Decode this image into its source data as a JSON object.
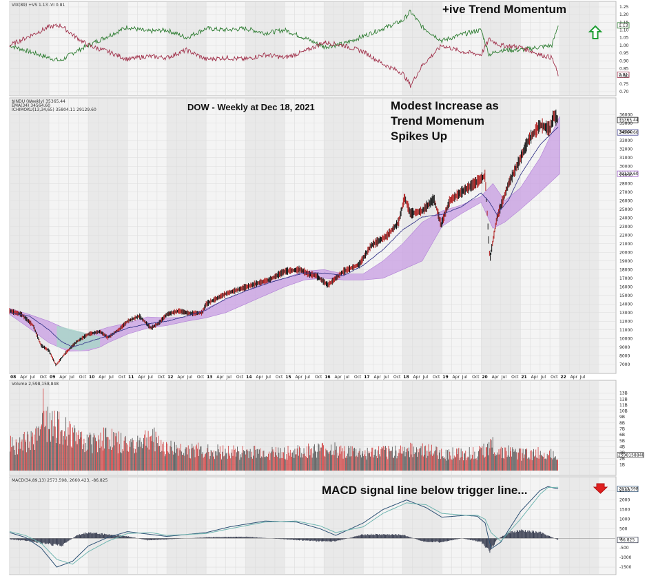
{
  "chart_data": [
    {
      "type": "line",
      "panel": "vix-ratio",
      "legend_text": "VIX(89) +VS 1.13 -VI 0.81",
      "annotation": "+ive Trend Momentum",
      "y_ticks": [
        "1.25",
        "1.20",
        "1.15",
        "1.10",
        "1.05",
        "1.00",
        "0.95",
        "0.90",
        "0.85",
        "0.80",
        "0.75",
        "0.70"
      ],
      "ylim": [
        0.7,
        1.25
      ],
      "last_labels": {
        "vi_plus": "1.13",
        "vi_minus": "0.81"
      },
      "series": [
        {
          "name": "+VS",
          "color": "#2e7d32",
          "x": [
            2008,
            2008.5,
            2009,
            2009.3,
            2009.6,
            2010,
            2010.5,
            2011,
            2011.5,
            2012,
            2012.5,
            2013,
            2013.5,
            2014,
            2014.5,
            2015,
            2015.5,
            2016,
            2016.5,
            2017,
            2017.5,
            2018,
            2018.2,
            2018.5,
            2019,
            2019.5,
            2020,
            2020.2,
            2020.5,
            2021,
            2021.5,
            2021.8,
            2021.96
          ],
          "y": [
            1.0,
            0.96,
            0.92,
            0.9,
            0.95,
            1.0,
            1.06,
            1.12,
            1.09,
            1.1,
            1.05,
            1.11,
            1.1,
            1.11,
            1.08,
            1.1,
            1.05,
            0.99,
            1.01,
            1.06,
            1.11,
            1.16,
            1.22,
            1.12,
            1.03,
            1.07,
            1.1,
            0.94,
            0.97,
            0.97,
            0.99,
            1.0,
            1.13
          ]
        },
        {
          "name": "-VI",
          "color": "#a0304a",
          "x": [
            2008,
            2008.5,
            2009,
            2009.3,
            2009.6,
            2010,
            2010.5,
            2011,
            2011.5,
            2012,
            2012.5,
            2013,
            2013.5,
            2014,
            2014.5,
            2015,
            2015.5,
            2016,
            2016.5,
            2017,
            2017.5,
            2018,
            2018.2,
            2018.5,
            2019,
            2019.5,
            2020,
            2020.2,
            2020.5,
            2021,
            2021.5,
            2021.8,
            2021.96
          ],
          "y": [
            1.0,
            1.06,
            1.12,
            1.13,
            1.07,
            1.0,
            0.96,
            0.91,
            0.93,
            0.92,
            0.97,
            0.91,
            0.92,
            0.91,
            0.94,
            0.92,
            0.96,
            1.02,
            1.0,
            0.96,
            0.88,
            0.82,
            0.74,
            0.87,
            1.0,
            0.96,
            0.94,
            1.04,
            1.0,
            0.99,
            0.94,
            0.92,
            0.81
          ]
        }
      ]
    },
    {
      "type": "line",
      "panel": "price",
      "legend_lines": [
        "$INDU (Weekly) 35365.44",
        "EMA(34) 34564.60",
        "ICHIMOKU(13,34,65) 35804.11 29129.60"
      ],
      "title": "DOW - Weekly at Dec 18, 2021",
      "annotation": "Modest Increase as Trend Momenum Spikes Up",
      "y_ticks": [
        "36000",
        "35000",
        "34000",
        "33000",
        "32000",
        "31000",
        "30000",
        "29000",
        "28000",
        "27000",
        "26000",
        "25000",
        "24000",
        "23000",
        "22000",
        "21000",
        "20000",
        "19000",
        "18000",
        "17000",
        "16000",
        "15000",
        "14000",
        "13000",
        "12000",
        "11000",
        "10000",
        "9000",
        "8000",
        "7000"
      ],
      "ylim": [
        6500,
        36500
      ],
      "last_labels": {
        "close": "35365.44",
        "ema": "34564.60",
        "cloud": "29129.60"
      },
      "x_ticks": [
        "08",
        "Apr",
        "Jul",
        "Oct",
        "09",
        "Apr",
        "Jul",
        "Oct",
        "10",
        "Apr",
        "Jul",
        "Oct",
        "11",
        "Apr",
        "Jul",
        "Oct",
        "12",
        "Apr",
        "Jul",
        "Oct",
        "13",
        "Apr",
        "Jul",
        "Oct",
        "14",
        "Apr",
        "Jul",
        "Oct",
        "15",
        "Apr",
        "Jul",
        "Oct",
        "16",
        "Apr",
        "Jul",
        "Oct",
        "17",
        "Apr",
        "Jul",
        "Oct",
        "18",
        "Apr",
        "Jul",
        "Oct",
        "19",
        "Apr",
        "Jul",
        "Oct",
        "20",
        "Apr",
        "Jul",
        "Oct",
        "21",
        "Apr",
        "Jul",
        "Oct",
        "22",
        "Apr",
        "Jul"
      ],
      "series": [
        {
          "name": "$INDU (Weekly)",
          "color": "#111111",
          "x": [
            2008,
            2008.3,
            2008.6,
            2008.8,
            2009.0,
            2009.18,
            2009.4,
            2009.7,
            2010,
            2010.3,
            2010.5,
            2010.8,
            2011,
            2011.3,
            2011.6,
            2011.8,
            2012,
            2012.3,
            2012.6,
            2012.9,
            2013,
            2013.5,
            2013.9,
            2014.3,
            2014.6,
            2015,
            2015.4,
            2015.6,
            2015.8,
            2016.1,
            2016.5,
            2016.9,
            2017.2,
            2017.6,
            2017.9,
            2018.05,
            2018.2,
            2018.5,
            2018.8,
            2018.98,
            2019.2,
            2019.5,
            2019.9,
            2020.1,
            2020.22,
            2020.4,
            2020.7,
            2020.95,
            2021.2,
            2021.5,
            2021.75,
            2021.85,
            2021.96
          ],
          "y": [
            13200,
            12800,
            11500,
            9200,
            8600,
            6900,
            8200,
            9600,
            10500,
            10800,
            10100,
            11100,
            12000,
            12600,
            11200,
            11800,
            12800,
            13200,
            12900,
            13000,
            14000,
            15200,
            15800,
            16400,
            16800,
            17800,
            18000,
            17500,
            17300,
            16200,
            17800,
            18600,
            20800,
            21900,
            23500,
            26400,
            24500,
            24800,
            26200,
            23200,
            26000,
            27000,
            28200,
            28900,
            19200,
            24000,
            28000,
            30400,
            33000,
            34800,
            34300,
            35900,
            35365
          ]
        },
        {
          "name": "EMA(34)",
          "color": "#3a3a8c",
          "x": [
            2008,
            2008.5,
            2009,
            2009.3,
            2009.6,
            2010,
            2010.5,
            2011,
            2011.5,
            2012,
            2012.5,
            2013,
            2013.5,
            2014,
            2014.5,
            2015,
            2015.5,
            2016,
            2016.5,
            2017,
            2017.5,
            2018,
            2018.5,
            2019,
            2019.5,
            2020,
            2020.2,
            2020.4,
            2020.7,
            2021,
            2021.5,
            2021.96
          ],
          "y": [
            13000,
            12600,
            11000,
            9700,
            9000,
            9600,
            10300,
            11200,
            11700,
            12000,
            12600,
            13300,
            14600,
            15500,
            16300,
            17000,
            17600,
            17600,
            17300,
            18500,
            20300,
            22600,
            24100,
            24400,
            25300,
            26900,
            25900,
            24400,
            26100,
            29000,
            32500,
            34564
          ]
        }
      ],
      "cloud": {
        "color": "#c89de3",
        "upper_x": [
          2008,
          2008.5,
          2009,
          2009.5,
          2010,
          2010.3,
          2010.5,
          2011,
          2011.5,
          2012,
          2012.5,
          2013,
          2013.5,
          2014,
          2014.5,
          2015,
          2015.5,
          2016,
          2016.5,
          2017,
          2017.5,
          2018,
          2018.5,
          2019,
          2019.5,
          2020,
          2020.3,
          2020.6,
          2021,
          2021.5,
          2022
        ],
        "upper_y": [
          13500,
          12800,
          12000,
          11000,
          10500,
          11000,
          11300,
          11800,
          12500,
          12400,
          12500,
          13500,
          14500,
          15500,
          16500,
          17000,
          17800,
          18000,
          17500,
          17500,
          19000,
          21000,
          23500,
          24800,
          25500,
          26500,
          28000,
          26000,
          27500,
          31000,
          35800
        ],
        "lower_x": [
          2008,
          2008.5,
          2009,
          2009.5,
          2010,
          2010.3,
          2010.5,
          2011,
          2011.5,
          2012,
          2012.5,
          2013,
          2013.5,
          2014,
          2014.5,
          2015,
          2015.5,
          2016,
          2016.5,
          2017,
          2017.5,
          2018,
          2018.5,
          2019,
          2019.5,
          2020,
          2020.3,
          2020.6,
          2021,
          2021.5,
          2022
        ],
        "lower_y": [
          12800,
          11200,
          9500,
          8500,
          8600,
          9000,
          9500,
          10500,
          11200,
          11500,
          12000,
          12400,
          13000,
          14000,
          15000,
          16000,
          16800,
          17000,
          16800,
          16800,
          17000,
          18000,
          19000,
          23000,
          24500,
          25800,
          22800,
          23500,
          25000,
          27000,
          29129
        ]
      }
    },
    {
      "type": "bar",
      "panel": "volume",
      "legend_text": "Volume 2,598,158,848",
      "y_ticks": [
        "13B",
        "12B",
        "11B",
        "10B",
        "9B",
        "8B",
        "7B",
        "6B",
        "5B",
        "4B",
        "3B",
        "2B",
        "1B"
      ],
      "ylim": [
        0,
        14
      ],
      "last_label": "2598158848",
      "x_range": [
        2008,
        2022
      ],
      "profile_x": [
        2008,
        2008.5,
        2008.8,
        2009.0,
        2009.2,
        2009.6,
        2010,
        2010.4,
        2011,
        2011.6,
        2012,
        2013,
        2014,
        2015,
        2015.6,
        2016.2,
        2017,
        2018,
        2018.2,
        2019,
        2020,
        2020.22,
        2020.4,
        2021,
        2021.96
      ],
      "profile_y": [
        4.5,
        5.2,
        7.5,
        9.0,
        8.0,
        6.5,
        5.0,
        6.0,
        4.5,
        6.0,
        4.0,
        3.5,
        3.3,
        3.2,
        3.5,
        3.8,
        3.0,
        3.5,
        4.0,
        3.0,
        3.2,
        5.0,
        3.5,
        3.0,
        3.1
      ]
    },
    {
      "type": "line",
      "panel": "macd",
      "legend_text": "MACD(34,89,13) 2573.598, 2660.423, -86.825",
      "annotation": "MACD signal line below trigger line...",
      "y_ticks": [
        "2500",
        "2000",
        "1500",
        "1000",
        "500",
        "0",
        "-500",
        "-1000",
        "-1500"
      ],
      "ylim": [
        -1750,
        2850
      ],
      "last_labels": {
        "macd": "2573.598",
        "signal": "2660.423",
        "histogram": "-86.825"
      },
      "series": [
        {
          "name": "MACD",
          "color": "#2b4f73",
          "x": [
            2008,
            2008.4,
            2008.8,
            2009.2,
            2009.6,
            2010,
            2010.5,
            2011,
            2011.6,
            2012,
            2013,
            2013.6,
            2014.5,
            2015.3,
            2015.9,
            2016.3,
            2017,
            2017.5,
            2018.1,
            2018.6,
            2019,
            2019.6,
            2019.9,
            2020.1,
            2020.25,
            2020.5,
            2021,
            2021.5,
            2021.7,
            2021.96
          ],
          "y": [
            300,
            50,
            -500,
            -1500,
            -1200,
            -400,
            50,
            350,
            200,
            100,
            300,
            600,
            900,
            850,
            500,
            150,
            800,
            1500,
            2000,
            1600,
            1100,
            1200,
            1150,
            800,
            -550,
            -200,
            1400,
            2500,
            2700,
            2574
          ]
        },
        {
          "name": "Signal",
          "color": "#6fb5b0",
          "x": [
            2008,
            2008.4,
            2008.8,
            2009.2,
            2009.6,
            2010,
            2010.5,
            2011,
            2011.6,
            2012,
            2013,
            2013.6,
            2014.5,
            2015.3,
            2015.9,
            2016.3,
            2017,
            2017.5,
            2018.1,
            2018.6,
            2019,
            2019.6,
            2019.9,
            2020.1,
            2020.25,
            2020.5,
            2021,
            2021.5,
            2021.7,
            2021.96
          ],
          "y": [
            350,
            150,
            -250,
            -1100,
            -1350,
            -700,
            -150,
            250,
            300,
            150,
            250,
            500,
            850,
            900,
            650,
            300,
            600,
            1300,
            1850,
            1750,
            1300,
            1200,
            1200,
            1000,
            300,
            -150,
            1000,
            2300,
            2650,
            2660
          ]
        }
      ],
      "histogram": {
        "color": "#3a3f52",
        "x": [
          2008,
          2008.5,
          2009,
          2009.3,
          2009.7,
          2010,
          2010.5,
          2011,
          2011.5,
          2012,
          2013,
          2014,
          2015,
          2015.8,
          2016.3,
          2017,
          2017.5,
          2018,
          2018.5,
          2019,
          2019.5,
          2020,
          2020.2,
          2020.4,
          2020.7,
          2021,
          2021.5,
          2021.96
        ],
        "y": [
          -50,
          -150,
          -300,
          -400,
          150,
          300,
          200,
          100,
          -100,
          -50,
          50,
          80,
          -50,
          -150,
          -150,
          200,
          200,
          180,
          -150,
          -200,
          0,
          -200,
          -700,
          -50,
          300,
          400,
          300,
          -87
        ]
      }
    }
  ]
}
